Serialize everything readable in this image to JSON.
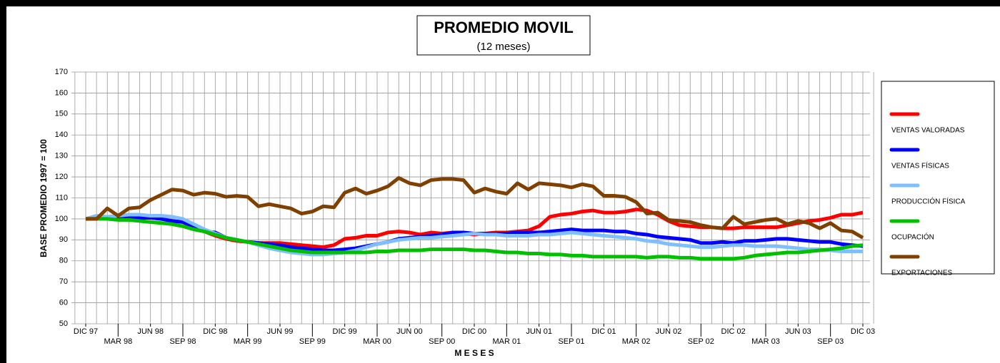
{
  "chart_data": {
    "type": "line",
    "title": "PROMEDIO MOVIL",
    "subtitle": "(12 meses)",
    "y_label": "BASE PROMEDIO 1997 = 100",
    "x_label": "M E S E S",
    "ylim": [
      50,
      170
    ],
    "yticks": [
      50,
      60,
      70,
      80,
      90,
      100,
      110,
      120,
      130,
      140,
      150,
      160,
      170
    ],
    "grid": true,
    "legend": "right",
    "categories": [
      "DIC 97",
      null,
      null,
      "MAR 98",
      null,
      null,
      "JUN 98",
      null,
      null,
      "SEP 98",
      null,
      null,
      "DIC 98",
      null,
      null,
      "MAR 99",
      null,
      null,
      "JUN 99",
      null,
      null,
      "SEP 99",
      null,
      null,
      "DIC 99",
      null,
      null,
      "MAR 00",
      null,
      null,
      "JUN 00",
      null,
      null,
      "SEP 00",
      null,
      null,
      "DIC 00",
      null,
      null,
      "MAR 01",
      null,
      null,
      "JUN 01",
      null,
      null,
      "SEP 01",
      null,
      null,
      "DIC 01",
      null,
      null,
      "MAR 02",
      null,
      null,
      "JUN 02",
      null,
      null,
      "SEP 02",
      null,
      null,
      "DIC 02",
      null,
      null,
      "MAR 03",
      null,
      null,
      "JUN 03",
      null,
      null,
      "SEP 03",
      null,
      null,
      "DIC 03"
    ],
    "series": [
      {
        "name": "VENTAS VALORADAS",
        "color": "#ff0000",
        "values": [
          100,
          101,
          100.5,
          100,
          101,
          101,
          100.5,
          100,
          99,
          98.5,
          96,
          94,
          92,
          90.5,
          89.5,
          89,
          88.5,
          88.5,
          88.5,
          88,
          87.5,
          87,
          86.5,
          87.5,
          90.5,
          91,
          92,
          92,
          93.5,
          94,
          93.5,
          92.5,
          93.5,
          93,
          93.5,
          93,
          92.5,
          93,
          93.5,
          93.5,
          94,
          94.5,
          96.5,
          101,
          102,
          102.5,
          103.5,
          104,
          103,
          103,
          103.5,
          104.5,
          104,
          102,
          99,
          97,
          96.5,
          96,
          96,
          95.5,
          95.5,
          96,
          96,
          96,
          96,
          97,
          98,
          99,
          99.5,
          100.5,
          102,
          102,
          103
        ]
      },
      {
        "name": "VENTAS FÍSICAS",
        "color": "#0000ff",
        "values": [
          100,
          101,
          101,
          100.5,
          101,
          100.5,
          100.5,
          100,
          99,
          98.5,
          96.5,
          94,
          93.5,
          91,
          90,
          89,
          88.5,
          88,
          87.5,
          86.5,
          86,
          85.5,
          85,
          85,
          85.5,
          86,
          87,
          88,
          89,
          90.5,
          91,
          91.5,
          92,
          92.5,
          93.5,
          93.5,
          93,
          93,
          93,
          93,
          93.5,
          93.5,
          93.5,
          94,
          94.5,
          95,
          94.5,
          94.5,
          94.5,
          94,
          94,
          93,
          92.5,
          91.5,
          91,
          90.5,
          90,
          88.5,
          88.5,
          89,
          88.5,
          89.5,
          89.5,
          90,
          90.5,
          90.5,
          90,
          89.5,
          89,
          89,
          88,
          87.5,
          87
        ]
      },
      {
        "name": "PRODUCCIÓN FÍSICA",
        "color": "#80bfff",
        "values": [
          100,
          101.5,
          101,
          101.5,
          102,
          102,
          101.5,
          101.5,
          101,
          100,
          97.5,
          95,
          93,
          91,
          90,
          89,
          87.5,
          86,
          85,
          84,
          83.5,
          83,
          83,
          83.5,
          84,
          85,
          86.5,
          88,
          89,
          90,
          90.5,
          91,
          91,
          91.5,
          92,
          92.5,
          93,
          92.5,
          92.5,
          92,
          92,
          92,
          92.5,
          92.5,
          93,
          93.5,
          93,
          92.5,
          92,
          91.5,
          91,
          90.5,
          89.5,
          89,
          88,
          87.5,
          87,
          86.5,
          86.5,
          87,
          87.5,
          87.5,
          87,
          87,
          87,
          86.5,
          86,
          85.5,
          85.5,
          85,
          84.5,
          84.5,
          84.5
        ]
      },
      {
        "name": "OCUPACIÓN",
        "color": "#00c000",
        "values": [
          100,
          100,
          100,
          99.5,
          99.5,
          99,
          98.5,
          98,
          97.5,
          96.5,
          95,
          94,
          92.5,
          91,
          90,
          89,
          88,
          87,
          86,
          85,
          84.5,
          84,
          84,
          84,
          84,
          84,
          84,
          84.5,
          84.5,
          85,
          85,
          85,
          85.5,
          85.5,
          85.5,
          85.5,
          85,
          85,
          84.5,
          84,
          84,
          83.5,
          83.5,
          83,
          83,
          82.5,
          82.5,
          82,
          82,
          82,
          82,
          82,
          81.5,
          82,
          82,
          81.5,
          81.5,
          81,
          81,
          81,
          81,
          81.5,
          82.5,
          83,
          83.5,
          84,
          84,
          84.5,
          85,
          85.5,
          86,
          87,
          87.5
        ]
      },
      {
        "name": "EXPORTACIONES",
        "color": "#804000",
        "values": [
          100,
          100,
          105,
          101.5,
          105,
          105.5,
          109,
          111.5,
          114,
          113.5,
          111.5,
          112.5,
          112,
          110.5,
          111,
          110.5,
          106,
          107,
          106,
          105,
          102.5,
          103.5,
          106,
          105.5,
          112.5,
          114.5,
          112,
          113.5,
          115.5,
          119.5,
          117,
          116,
          118.5,
          119,
          119,
          118.5,
          112.5,
          114.5,
          113,
          112,
          117,
          114,
          117,
          116.5,
          116,
          115,
          116.5,
          115.5,
          111,
          111,
          110.5,
          108,
          102.5,
          103,
          99.5,
          99,
          98.5,
          97,
          96,
          95.5,
          101,
          97.5,
          98.5,
          99.5,
          100,
          97.5,
          99,
          98,
          95.5,
          98,
          94.5,
          94,
          91
        ]
      }
    ]
  }
}
